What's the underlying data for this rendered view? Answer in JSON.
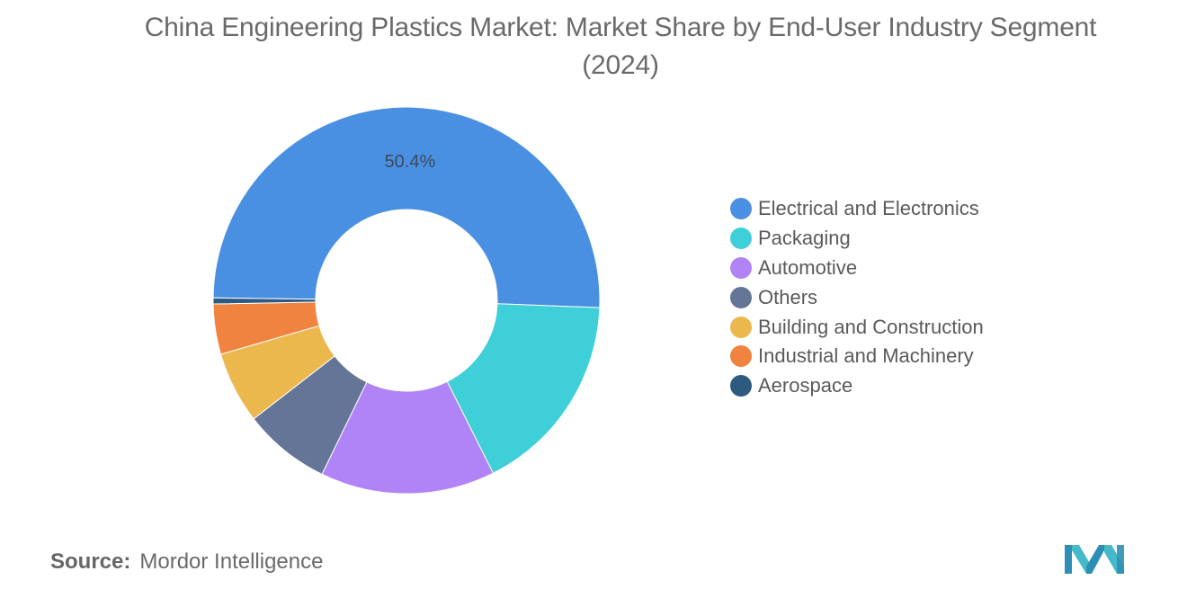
{
  "title": "China Engineering Plastics Market: Market Share by End-User Industry Segment (2024)",
  "source": {
    "label": "Source:",
    "value": "Mordor Intelligence"
  },
  "chart_data": {
    "type": "pie",
    "variant": "donut",
    "title": "China Engineering Plastics Market: Market Share by End-User Industry Segment (2024)",
    "unit": "%",
    "slices": [
      {
        "name": "Electrical and Electronics",
        "value": 50.4,
        "color": "#4a90e2",
        "label": "50.4%"
      },
      {
        "name": "Packaging",
        "value": 17.0,
        "color": "#3ecfd9",
        "label": ""
      },
      {
        "name": "Automotive",
        "value": 14.6,
        "color": "#b084f7",
        "label": ""
      },
      {
        "name": "Others",
        "value": 7.3,
        "color": "#657597",
        "label": ""
      },
      {
        "name": "Building and Construction",
        "value": 6.0,
        "color": "#ebb84e",
        "label": ""
      },
      {
        "name": "Industrial and Machinery",
        "value": 4.2,
        "color": "#f0833f",
        "label": ""
      },
      {
        "name": "Aerospace",
        "value": 0.5,
        "color": "#2e5a80",
        "label": ""
      }
    ],
    "legend_position": "right"
  }
}
